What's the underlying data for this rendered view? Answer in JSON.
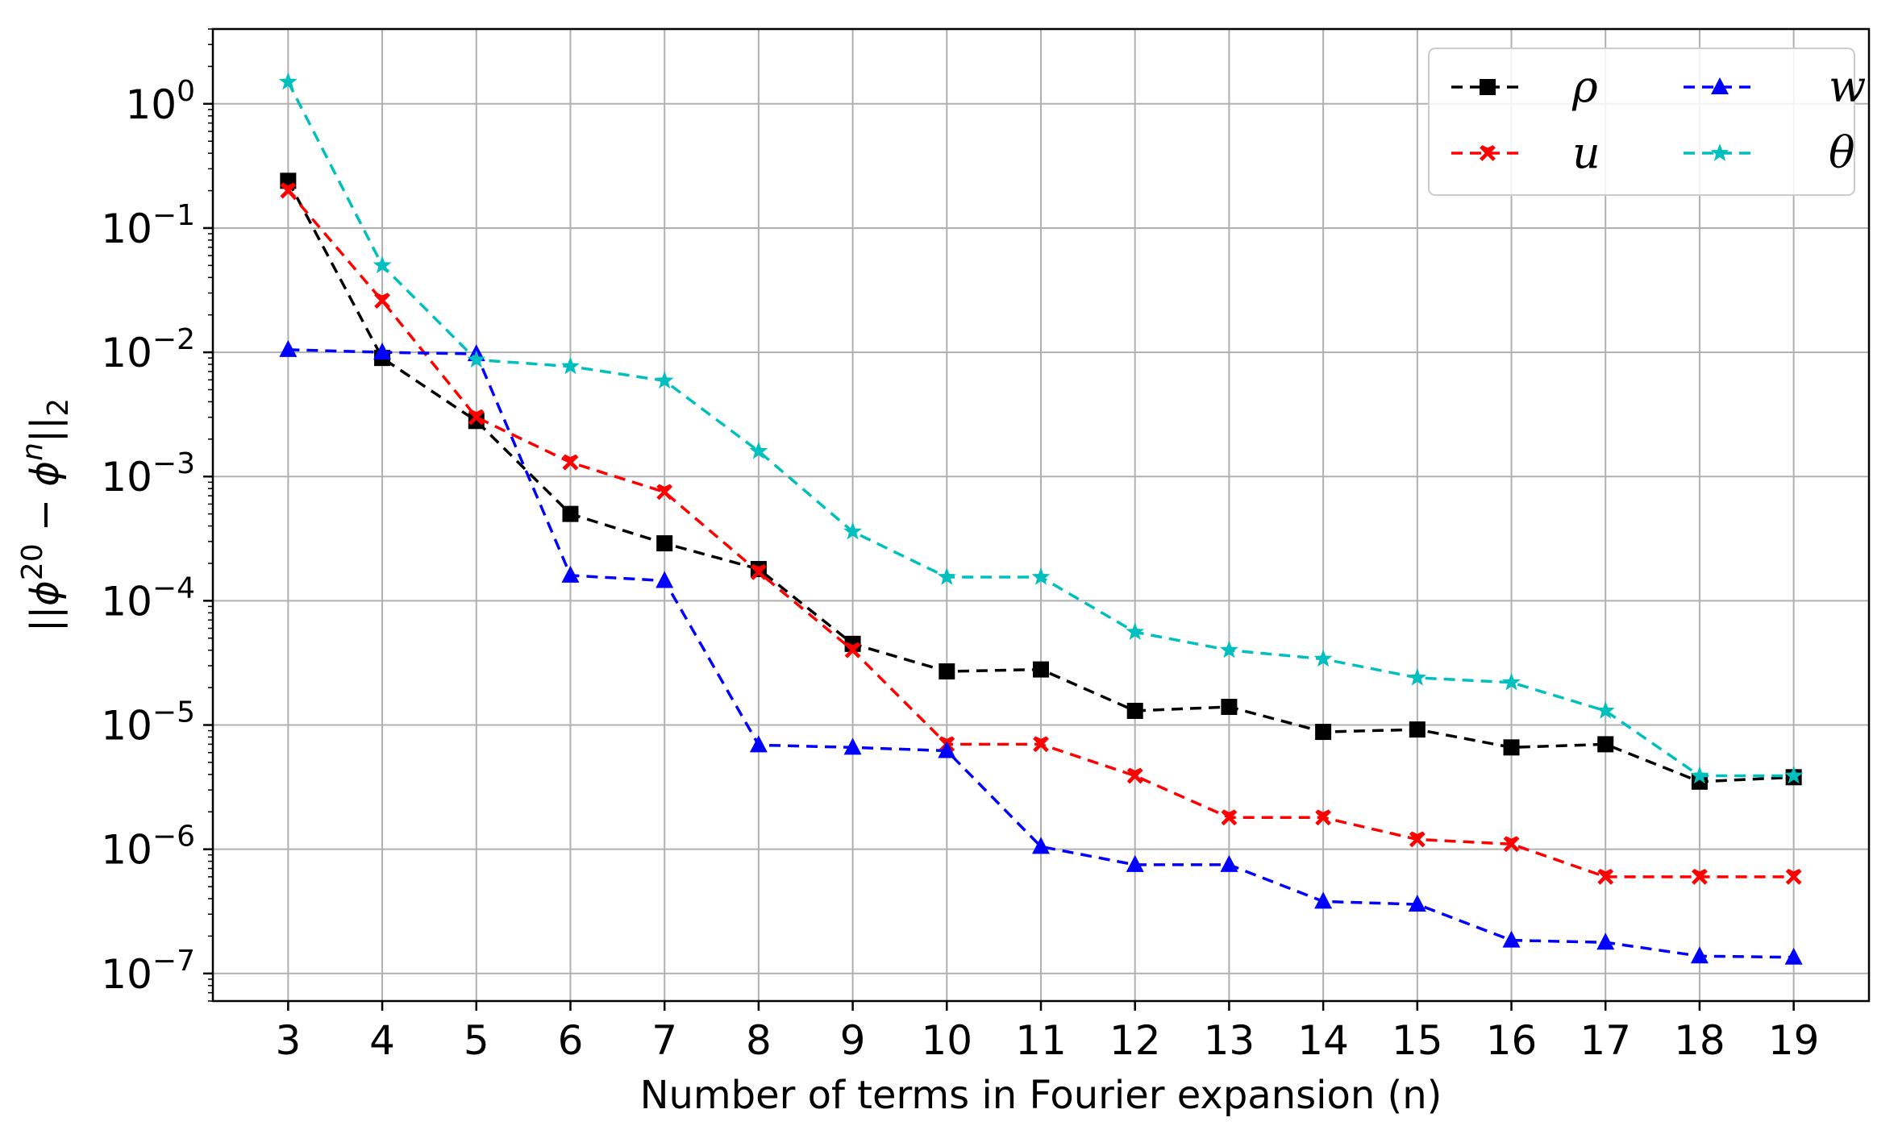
{
  "chart_data": {
    "type": "line",
    "title": "",
    "xlabel": "Number of terms in Fourier expansion (n)",
    "ylabel": "||ϕ^20 − ϕ^n||_2",
    "ylabel_parts": {
      "open": "||ϕ",
      "sup1": "20",
      "mid": " − ϕ",
      "sup2": "n",
      "close": "||",
      "sub": "2"
    },
    "yscale": "log",
    "ylim": [
      6e-08,
      4
    ],
    "xlim": [
      2.2,
      19.8
    ],
    "grid": true,
    "legend_position": "top-right",
    "x": [
      3,
      4,
      5,
      6,
      7,
      8,
      9,
      10,
      11,
      12,
      13,
      14,
      15,
      16,
      17,
      18,
      19
    ],
    "x_tick_labels": [
      "3",
      "4",
      "5",
      "6",
      "7",
      "8",
      "9",
      "10",
      "11",
      "12",
      "13",
      "14",
      "15",
      "16",
      "17",
      "18",
      "19"
    ],
    "y_ticks": [
      {
        "value": 1,
        "base": "10",
        "exp": "0"
      },
      {
        "value": 0.1,
        "base": "10",
        "exp": "−1"
      },
      {
        "value": 0.01,
        "base": "10",
        "exp": "−2"
      },
      {
        "value": 0.001,
        "base": "10",
        "exp": "−3"
      },
      {
        "value": 0.0001,
        "base": "10",
        "exp": "−4"
      },
      {
        "value": 1e-05,
        "base": "10",
        "exp": "−5"
      },
      {
        "value": 1e-06,
        "base": "10",
        "exp": "−6"
      },
      {
        "value": 1e-07,
        "base": "10",
        "exp": "−7"
      }
    ],
    "series": [
      {
        "name": "ρ",
        "color": "#000000",
        "marker": "square",
        "values": [
          0.24,
          0.009,
          0.0028,
          0.0005,
          0.00029,
          0.00018,
          4.5e-05,
          2.7e-05,
          2.8e-05,
          1.3e-05,
          1.4e-05,
          8.8e-06,
          9.2e-06,
          6.6e-06,
          7e-06,
          3.5e-06,
          3.8e-06
        ]
      },
      {
        "name": "u",
        "color": "#ff0000",
        "marker": "x",
        "values": [
          0.2,
          0.026,
          0.003,
          0.0013,
          0.00075,
          0.00017,
          4e-05,
          7e-06,
          7e-06,
          3.9e-06,
          1.8e-06,
          1.8e-06,
          1.2e-06,
          1.1e-06,
          6e-07,
          6e-07,
          6e-07
        ]
      },
      {
        "name": "w",
        "color": "#0000ff",
        "marker": "triangle",
        "values": [
          0.0105,
          0.01,
          0.0097,
          0.00016,
          0.000145,
          6.9e-06,
          6.6e-06,
          6.2e-06,
          1.05e-06,
          7.5e-07,
          7.5e-07,
          3.8e-07,
          3.6e-07,
          1.85e-07,
          1.78e-07,
          1.38e-07,
          1.35e-07
        ]
      },
      {
        "name": "θ",
        "color": "#00bfbf",
        "marker": "star",
        "values": [
          1.5,
          0.05,
          0.0087,
          0.0077,
          0.0059,
          0.0016,
          0.00036,
          0.000155,
          0.000155,
          5.6e-05,
          4e-05,
          3.4e-05,
          2.4e-05,
          2.2e-05,
          1.3e-05,
          3.9e-06,
          3.9e-06
        ]
      }
    ]
  }
}
